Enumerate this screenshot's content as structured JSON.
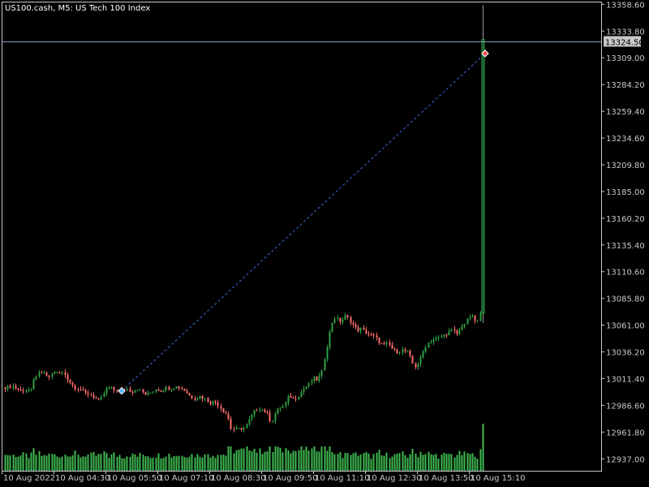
{
  "window": {
    "symbol_title": "US100.cash, M5:  US Tech 100 Index"
  },
  "colors": {
    "background": "#000000",
    "frame": "#c8c8c8",
    "text": "#c8c8c8",
    "bull": "#2ea043",
    "bear": "#ff6b6b",
    "wick": "#9a9a9a",
    "volume": "#3fb950",
    "bid_line": "#8a9bb8",
    "trade_line": "#3a6fd8",
    "entry_marker": "#5ab4ff",
    "exit_marker": "#ff4d4d"
  },
  "chart_data": {
    "type": "candlestick",
    "timeframe": "M5",
    "price_axis": {
      "ticks": [
        "13358.60",
        "13333.80",
        "13309.00",
        "13284.20",
        "13259.40",
        "13234.60",
        "13209.80",
        "13185.00",
        "13160.20",
        "13135.40",
        "13110.60",
        "13085.80",
        "13061.00",
        "13036.20",
        "13011.40",
        "12986.60",
        "12961.80",
        "12937.00"
      ],
      "ylim": [
        12925.9,
        13361.1
      ]
    },
    "time_axis": {
      "ticks": [
        "10 Aug 2022",
        "10 Aug 04:30",
        "10 Aug 05:50",
        "10 Aug 07:10",
        "10 Aug 08:30",
        "10 Aug 09:50",
        "10 Aug 11:10",
        "10 Aug 12:30",
        "10 Aug 13:50",
        "10 Aug 15:10"
      ]
    },
    "current_price": "13324.50",
    "close_path": [
      [
        0,
        13004
      ],
      [
        8,
        13003
      ],
      [
        14,
        13005
      ],
      [
        20,
        13002
      ],
      [
        26,
        13000
      ],
      [
        32,
        13001
      ],
      [
        38,
        13000
      ],
      [
        42,
        13012
      ],
      [
        46,
        13016
      ],
      [
        50,
        13015
      ],
      [
        54,
        13017
      ],
      [
        58,
        13012
      ],
      [
        62,
        13014
      ],
      [
        66,
        13018
      ],
      [
        72,
        13016
      ],
      [
        78,
        13017
      ],
      [
        82,
        13012
      ],
      [
        86,
        13008
      ],
      [
        92,
        13003
      ],
      [
        98,
        13002
      ],
      [
        104,
        12998
      ],
      [
        110,
        12997
      ],
      [
        116,
        12994
      ],
      [
        122,
        12990
      ],
      [
        126,
        12995
      ],
      [
        130,
        13002
      ],
      [
        136,
        13003
      ],
      [
        142,
        13000
      ],
      [
        146,
        13001
      ],
      [
        150,
        13000
      ],
      [
        156,
        13002
      ],
      [
        162,
        12999
      ],
      [
        168,
        13002
      ],
      [
        174,
        13000
      ],
      [
        180,
        12996
      ],
      [
        186,
        12999
      ],
      [
        192,
        13002
      ],
      [
        198,
        13000
      ],
      [
        204,
        13003
      ],
      [
        210,
        13002
      ],
      [
        216,
        13004
      ],
      [
        222,
        13003
      ],
      [
        228,
        13000
      ],
      [
        234,
        12995
      ],
      [
        240,
        12993
      ],
      [
        246,
        12995
      ],
      [
        252,
        12993
      ],
      [
        258,
        12989
      ],
      [
        264,
        12990
      ],
      [
        270,
        12986
      ],
      [
        276,
        12980
      ],
      [
        280,
        12978
      ],
      [
        284,
        12965
      ],
      [
        290,
        12964
      ],
      [
        296,
        12965
      ],
      [
        302,
        12966
      ],
      [
        306,
        12972
      ],
      [
        312,
        12980
      ],
      [
        318,
        12984
      ],
      [
        324,
        12982
      ],
      [
        330,
        12978
      ],
      [
        334,
        12970
      ],
      [
        338,
        12978
      ],
      [
        344,
        12985
      ],
      [
        350,
        12986
      ],
      [
        356,
        12996
      ],
      [
        362,
        12992
      ],
      [
        368,
        12996
      ],
      [
        374,
        13002
      ],
      [
        380,
        13006
      ],
      [
        386,
        13012
      ],
      [
        390,
        13010
      ],
      [
        396,
        13016
      ],
      [
        400,
        13032
      ],
      [
        404,
        13046
      ],
      [
        408,
        13062
      ],
      [
        412,
        13068
      ],
      [
        416,
        13066
      ],
      [
        420,
        13064
      ],
      [
        426,
        13070
      ],
      [
        430,
        13066
      ],
      [
        436,
        13060
      ],
      [
        440,
        13056
      ],
      [
        444,
        13058
      ],
      [
        450,
        13054
      ],
      [
        456,
        13052
      ],
      [
        462,
        13050
      ],
      [
        466,
        13046
      ],
      [
        472,
        13042
      ],
      [
        478,
        13044
      ],
      [
        484,
        13038
      ],
      [
        490,
        13036
      ],
      [
        496,
        13038
      ],
      [
        502,
        13036
      ],
      [
        506,
        13030
      ],
      [
        510,
        13022
      ],
      [
        514,
        13024
      ],
      [
        518,
        13030
      ],
      [
        522,
        13038
      ],
      [
        526,
        13044
      ],
      [
        530,
        13046
      ],
      [
        536,
        13048
      ],
      [
        542,
        13050
      ],
      [
        548,
        13052
      ],
      [
        552,
        13054
      ],
      [
        556,
        13056
      ],
      [
        560,
        13055
      ],
      [
        564,
        13052
      ],
      [
        568,
        13060
      ],
      [
        572,
        13062
      ],
      [
        576,
        13066
      ],
      [
        580,
        13070
      ],
      [
        584,
        13066
      ],
      [
        588,
        13064
      ],
      [
        592,
        13072
      ],
      [
        594,
        13250
      ],
      [
        596,
        13316
      ],
      [
        600,
        13310
      ]
    ],
    "spike": {
      "open": 13072,
      "close": 13326,
      "high": 13358,
      "low": 13063
    },
    "trade": {
      "entry_price": 13000.0,
      "exit_price": 13313.0
    }
  }
}
